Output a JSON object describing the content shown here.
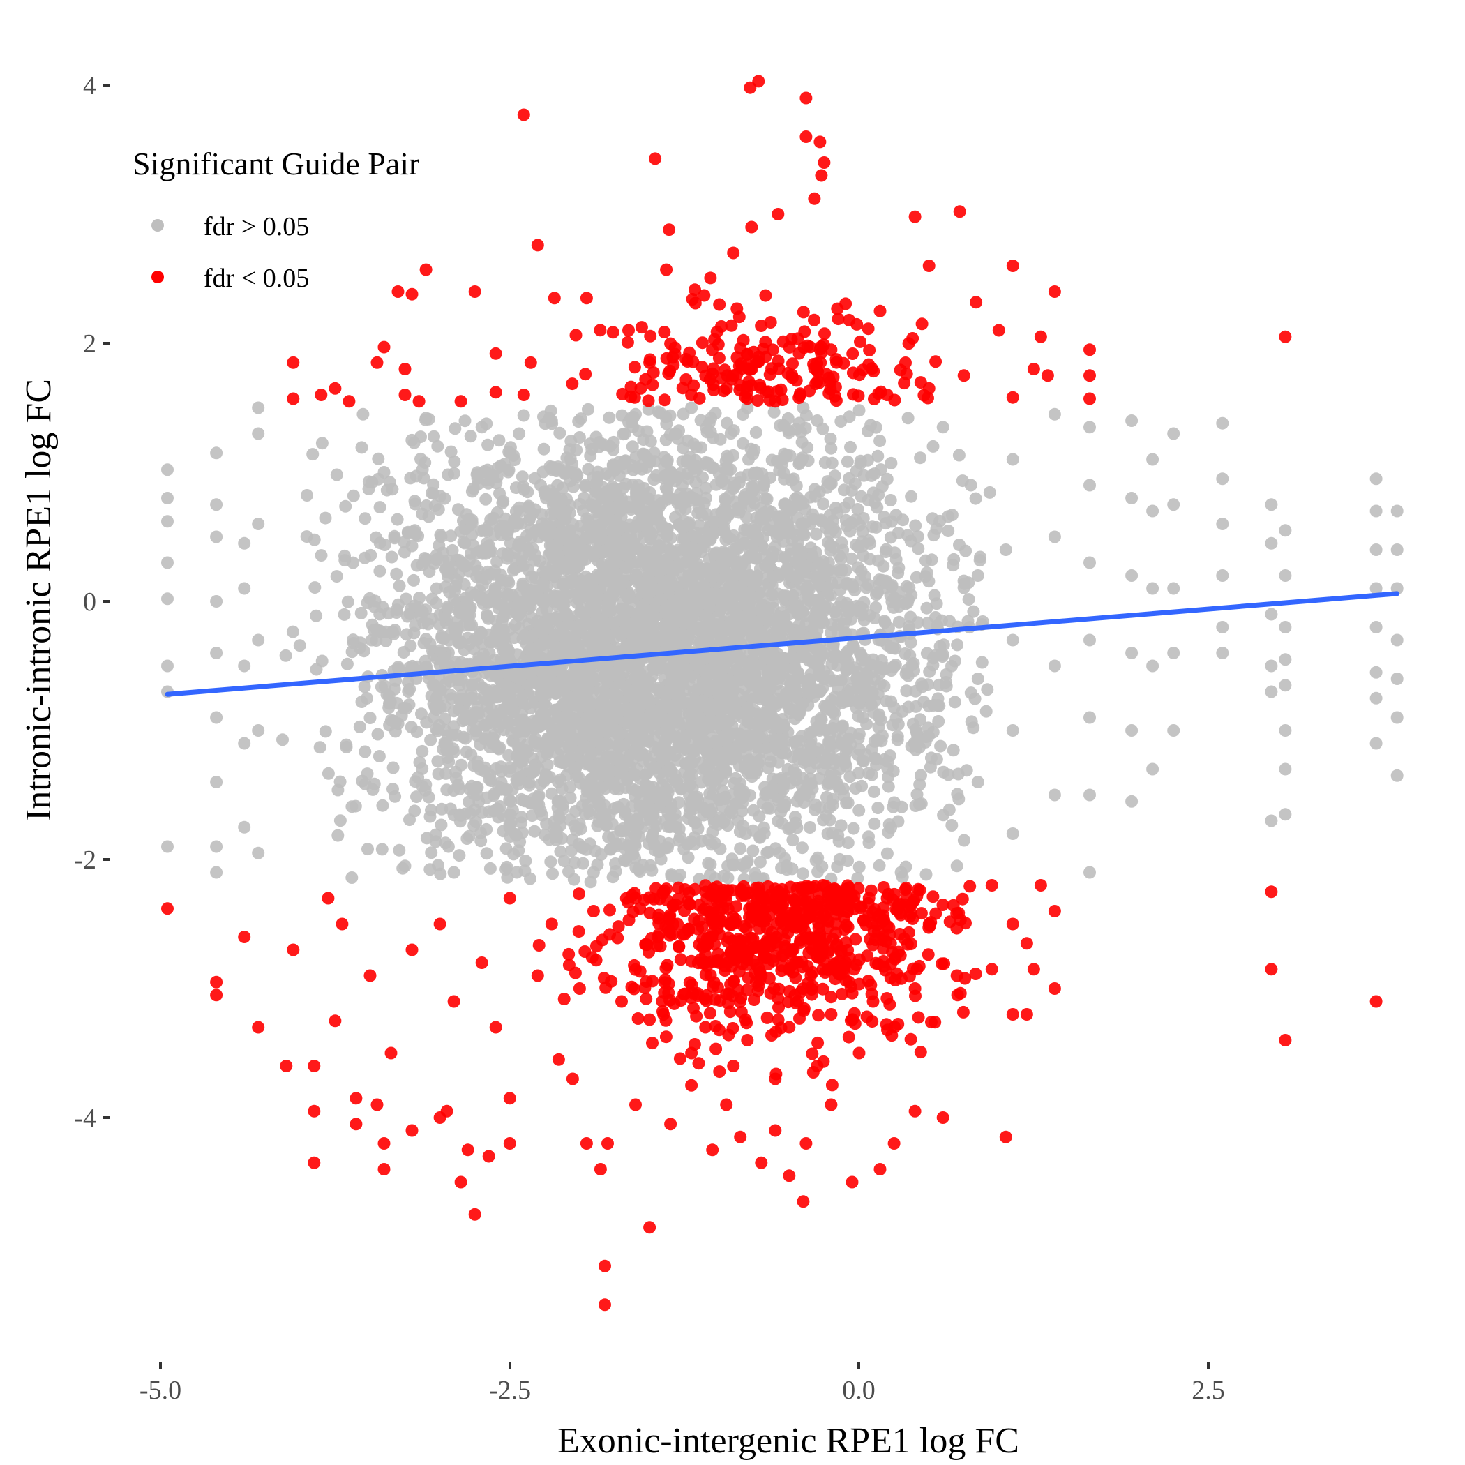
{
  "chart_data": {
    "type": "scatter",
    "title": "",
    "xlabel": "Exonic-intergenic RPE1 log FC",
    "ylabel": "Intronic-intronic RPE1 log FC",
    "xlim": [
      -5.1,
      4.1
    ],
    "ylim": [
      -5.7,
      4.2
    ],
    "x_ticks": [
      -5.0,
      -2.5,
      0.0,
      2.5
    ],
    "x_tick_labels": [
      "-5.0",
      "-2.5",
      "0.0",
      "2.5"
    ],
    "y_ticks": [
      -4,
      -2,
      0,
      2,
      4
    ],
    "y_tick_labels": [
      "-4",
      "-2",
      "0",
      "2",
      "4"
    ],
    "grid": false,
    "legend": {
      "title": "Significant Guide Pair",
      "placement": "top-left",
      "entries": [
        {
          "label": "fdr > 0.05",
          "color": "#bebebe"
        },
        {
          "label": "fdr < 0.05",
          "color": "#ff0000"
        }
      ]
    },
    "series": [
      {
        "name": "fdr > 0.05",
        "color": "#bebebe",
        "note_points": "dense cloud; y between about -2.2 and 1.5",
        "points": [
          [
            -4.95,
            1.02
          ],
          [
            -4.95,
            0.8
          ],
          [
            -4.95,
            0.62
          ],
          [
            -4.95,
            0.3
          ],
          [
            -4.95,
            0.02
          ],
          [
            -4.95,
            -0.5
          ],
          [
            -4.95,
            -0.7
          ],
          [
            -4.95,
            -1.9
          ],
          [
            -4.6,
            1.15
          ],
          [
            -4.6,
            0.75
          ],
          [
            -4.6,
            0.5
          ],
          [
            -4.6,
            0.0
          ],
          [
            -4.6,
            -0.4
          ],
          [
            -4.6,
            -0.9
          ],
          [
            -4.6,
            -1.4
          ],
          [
            -4.6,
            -1.9
          ],
          [
            -4.6,
            -2.1
          ],
          [
            -4.4,
            0.45
          ],
          [
            -4.4,
            0.1
          ],
          [
            -4.4,
            -0.5
          ],
          [
            -4.4,
            -1.1
          ],
          [
            -4.4,
            -1.75
          ],
          [
            -4.3,
            1.5
          ],
          [
            -4.3,
            1.3
          ],
          [
            -4.3,
            0.6
          ],
          [
            -4.3,
            -0.3
          ],
          [
            -4.3,
            -1.0
          ],
          [
            -4.3,
            -1.95
          ],
          [
            -3.55,
            1.45
          ],
          [
            -3.4,
            1.0
          ],
          [
            -3.25,
            -2.05
          ],
          [
            -3.1,
            1.42
          ],
          [
            -2.9,
            -2.1
          ],
          [
            -2.7,
            1.35
          ],
          [
            -2.45,
            -2.1
          ],
          [
            -2.2,
            1.4
          ],
          [
            -1.9,
            -2.1
          ],
          [
            -1.6,
            1.45
          ],
          [
            -1.2,
            1.5
          ],
          [
            -0.8,
            1.5
          ],
          [
            -0.4,
            1.5
          ],
          [
            0.0,
            1.48
          ],
          [
            0.35,
            1.42
          ],
          [
            0.6,
            1.35
          ],
          [
            0.8,
            0.9
          ],
          [
            0.85,
            0.2
          ],
          [
            0.85,
            -0.6
          ],
          [
            0.85,
            -1.4
          ],
          [
            0.7,
            -2.05
          ],
          [
            0.3,
            -2.1
          ],
          [
            -0.2,
            -2.15
          ],
          [
            -0.7,
            -2.15
          ],
          [
            -1.3,
            -2.15
          ],
          [
            1.1,
            1.1
          ],
          [
            1.05,
            0.4
          ],
          [
            1.1,
            -0.3
          ],
          [
            1.1,
            -1.0
          ],
          [
            1.1,
            -1.8
          ],
          [
            1.4,
            1.45
          ],
          [
            1.4,
            0.5
          ],
          [
            1.4,
            -0.5
          ],
          [
            1.4,
            -1.5
          ],
          [
            1.65,
            1.35
          ],
          [
            1.65,
            0.9
          ],
          [
            1.65,
            0.3
          ],
          [
            1.65,
            -0.3
          ],
          [
            1.65,
            -0.9
          ],
          [
            1.65,
            -1.5
          ],
          [
            1.65,
            -2.1
          ],
          [
            1.95,
            1.4
          ],
          [
            1.95,
            0.8
          ],
          [
            1.95,
            0.2
          ],
          [
            1.95,
            -0.4
          ],
          [
            1.95,
            -1.0
          ],
          [
            1.95,
            -1.55
          ],
          [
            2.1,
            1.1
          ],
          [
            2.1,
            0.7
          ],
          [
            2.1,
            0.1
          ],
          [
            2.1,
            -0.5
          ],
          [
            2.1,
            -1.3
          ],
          [
            2.25,
            1.3
          ],
          [
            2.25,
            0.75
          ],
          [
            2.25,
            0.1
          ],
          [
            2.25,
            -0.4
          ],
          [
            2.25,
            -1.0
          ],
          [
            2.6,
            1.38
          ],
          [
            2.6,
            0.95
          ],
          [
            2.6,
            0.6
          ],
          [
            2.6,
            0.2
          ],
          [
            2.6,
            -0.2
          ],
          [
            2.6,
            -0.4
          ],
          [
            2.95,
            0.75
          ],
          [
            2.95,
            0.45
          ],
          [
            2.95,
            -0.1
          ],
          [
            2.95,
            -0.5
          ],
          [
            2.95,
            -0.7
          ],
          [
            2.95,
            -1.7
          ],
          [
            3.05,
            0.55
          ],
          [
            3.05,
            0.2
          ],
          [
            3.05,
            -0.2
          ],
          [
            3.05,
            -0.45
          ],
          [
            3.05,
            -0.65
          ],
          [
            3.05,
            -1.0
          ],
          [
            3.05,
            -1.3
          ],
          [
            3.05,
            -1.65
          ],
          [
            3.7,
            0.95
          ],
          [
            3.7,
            0.7
          ],
          [
            3.7,
            0.4
          ],
          [
            3.7,
            0.1
          ],
          [
            3.7,
            -0.2
          ],
          [
            3.7,
            -0.55
          ],
          [
            3.7,
            -0.75
          ],
          [
            3.7,
            -1.1
          ],
          [
            3.85,
            0.7
          ],
          [
            3.85,
            0.4
          ],
          [
            3.85,
            0.1
          ],
          [
            3.85,
            -0.3
          ],
          [
            3.85,
            -0.6
          ],
          [
            3.85,
            -0.9
          ],
          [
            3.85,
            -1.35
          ]
        ]
      },
      {
        "name": "fdr < 0.05",
        "color": "#ff0000",
        "points": [
          [
            -0.72,
            4.03
          ],
          [
            -0.78,
            3.98
          ],
          [
            -0.38,
            3.9
          ],
          [
            -2.4,
            3.77
          ],
          [
            -0.38,
            3.6
          ],
          [
            -0.28,
            3.56
          ],
          [
            -0.25,
            3.4
          ],
          [
            -1.46,
            3.43
          ],
          [
            -0.27,
            3.3
          ],
          [
            -0.32,
            3.12
          ],
          [
            -0.58,
            3.0
          ],
          [
            0.72,
            3.02
          ],
          [
            0.4,
            2.98
          ],
          [
            -1.36,
            2.88
          ],
          [
            -0.77,
            2.9
          ],
          [
            -2.3,
            2.76
          ],
          [
            -3.1,
            2.57
          ],
          [
            -1.38,
            2.57
          ],
          [
            -0.9,
            2.7
          ],
          [
            0.5,
            2.6
          ],
          [
            1.1,
            2.6
          ],
          [
            -3.3,
            2.4
          ],
          [
            -3.2,
            2.38
          ],
          [
            -2.75,
            2.4
          ],
          [
            -2.18,
            2.35
          ],
          [
            -1.95,
            2.35
          ],
          [
            1.4,
            2.4
          ],
          [
            3.05,
            2.05
          ],
          [
            -1.65,
            2.1
          ],
          [
            -1.0,
            2.3
          ],
          [
            0.15,
            2.25
          ],
          [
            0.45,
            2.15
          ],
          [
            1.0,
            2.1
          ],
          [
            1.3,
            2.05
          ],
          [
            -3.4,
            1.97
          ],
          [
            -3.45,
            1.85
          ],
          [
            -4.05,
            1.85
          ],
          [
            -3.25,
            1.8
          ],
          [
            -2.6,
            1.92
          ],
          [
            -2.35,
            1.85
          ],
          [
            1.65,
            1.95
          ],
          [
            1.65,
            1.75
          ],
          [
            1.25,
            1.8
          ],
          [
            1.35,
            1.75
          ],
          [
            -3.75,
            1.65
          ],
          [
            -4.05,
            1.57
          ],
          [
            -3.85,
            1.6
          ],
          [
            -3.65,
            1.55
          ],
          [
            -3.25,
            1.6
          ],
          [
            -3.15,
            1.55
          ],
          [
            -2.85,
            1.55
          ],
          [
            -2.6,
            1.62
          ],
          [
            -2.4,
            1.6
          ],
          [
            1.1,
            1.58
          ],
          [
            1.65,
            1.57
          ],
          [
            0.75,
            1.75
          ],
          [
            -1.2,
            1.6
          ],
          [
            -0.9,
            1.75
          ],
          [
            -0.6,
            1.55
          ],
          [
            -0.3,
            1.7
          ],
          [
            0.2,
            1.6
          ],
          [
            0.5,
            1.65
          ],
          [
            -1.5,
            1.85
          ],
          [
            -0.2,
            1.95
          ],
          [
            -4.95,
            -2.38
          ],
          [
            -4.6,
            -2.95
          ],
          [
            -4.6,
            -3.05
          ],
          [
            -4.4,
            -2.6
          ],
          [
            -4.3,
            -3.3
          ],
          [
            -4.05,
            -2.7
          ],
          [
            -4.1,
            -3.6
          ],
          [
            -3.9,
            -3.6
          ],
          [
            -3.9,
            -4.35
          ],
          [
            -3.9,
            -3.95
          ],
          [
            -3.75,
            -3.25
          ],
          [
            -3.6,
            -3.85
          ],
          [
            -3.6,
            -4.05
          ],
          [
            -3.45,
            -3.9
          ],
          [
            -3.4,
            -4.2
          ],
          [
            -3.4,
            -4.4
          ],
          [
            -3.35,
            -3.5
          ],
          [
            -3.2,
            -4.1
          ],
          [
            -3.0,
            -4.0
          ],
          [
            -2.95,
            -3.95
          ],
          [
            -2.85,
            -4.5
          ],
          [
            -2.8,
            -4.25
          ],
          [
            -2.75,
            -4.75
          ],
          [
            -2.65,
            -4.3
          ],
          [
            -2.5,
            -3.85
          ],
          [
            -2.5,
            -4.2
          ],
          [
            -2.15,
            -3.55
          ],
          [
            -2.05,
            -3.7
          ],
          [
            -1.95,
            -4.2
          ],
          [
            -1.85,
            -4.4
          ],
          [
            -1.82,
            -5.15
          ],
          [
            -1.82,
            -5.45
          ],
          [
            -1.8,
            -4.2
          ],
          [
            -1.6,
            -3.9
          ],
          [
            -1.5,
            -4.85
          ],
          [
            -1.35,
            -4.05
          ],
          [
            -1.2,
            -3.75
          ],
          [
            -1.05,
            -4.25
          ],
          [
            -0.95,
            -3.9
          ],
          [
            -0.85,
            -4.15
          ],
          [
            -0.7,
            -4.35
          ],
          [
            -0.6,
            -4.1
          ],
          [
            -0.5,
            -4.45
          ],
          [
            -0.4,
            -4.65
          ],
          [
            -0.38,
            -4.2
          ],
          [
            -0.2,
            -3.9
          ],
          [
            -0.05,
            -4.5
          ],
          [
            0.15,
            -4.4
          ],
          [
            0.25,
            -4.2
          ],
          [
            0.4,
            -3.95
          ],
          [
            0.6,
            -4.0
          ],
          [
            1.05,
            -4.15
          ],
          [
            1.1,
            -3.2
          ],
          [
            1.2,
            -3.2
          ],
          [
            1.25,
            -2.85
          ],
          [
            1.4,
            -3.0
          ],
          [
            1.4,
            -2.4
          ],
          [
            1.3,
            -2.2
          ],
          [
            0.95,
            -2.2
          ],
          [
            0.95,
            -2.85
          ],
          [
            1.1,
            -2.5
          ],
          [
            1.2,
            -2.65
          ],
          [
            2.95,
            -2.25
          ],
          [
            2.95,
            -2.85
          ],
          [
            3.05,
            -3.4
          ],
          [
            3.7,
            -3.1
          ],
          [
            -2.5,
            -2.3
          ],
          [
            -2.2,
            -2.5
          ],
          [
            -1.9,
            -2.4
          ],
          [
            -1.6,
            -2.3
          ],
          [
            -1.3,
            -2.5
          ],
          [
            -1.0,
            -2.4
          ],
          [
            -0.7,
            -2.3
          ],
          [
            -0.4,
            -2.5
          ],
          [
            -0.1,
            -2.4
          ],
          [
            0.2,
            -2.3
          ],
          [
            0.5,
            -2.5
          ],
          [
            -3.0,
            -2.5
          ],
          [
            -3.2,
            -2.7
          ],
          [
            -2.7,
            -2.8
          ],
          [
            -2.3,
            -2.9
          ],
          [
            -2.0,
            -3.0
          ],
          [
            -1.7,
            -3.1
          ],
          [
            -1.4,
            -3.2
          ],
          [
            -1.1,
            -3.3
          ],
          [
            -0.8,
            -3.4
          ],
          [
            -0.5,
            -3.3
          ],
          [
            -0.2,
            -3.2
          ],
          [
            0.1,
            -3.1
          ],
          [
            0.4,
            -3.0
          ],
          [
            0.7,
            -2.9
          ],
          [
            -1.0,
            -2.8
          ],
          [
            -0.7,
            -2.9
          ],
          [
            -0.4,
            -3.0
          ],
          [
            -0.9,
            -3.6
          ],
          [
            -0.6,
            -3.7
          ],
          [
            -0.3,
            -3.6
          ],
          [
            -1.2,
            -3.5
          ],
          [
            0.0,
            -3.5
          ],
          [
            -2.6,
            -3.3
          ],
          [
            -2.9,
            -3.1
          ],
          [
            -3.5,
            -2.9
          ],
          [
            -3.7,
            -2.5
          ],
          [
            -3.8,
            -2.3
          ]
        ]
      }
    ],
    "trend_line": {
      "color": "#3366ff",
      "x": [
        -4.95,
        3.85
      ],
      "y": [
        -0.72,
        0.06
      ]
    }
  }
}
